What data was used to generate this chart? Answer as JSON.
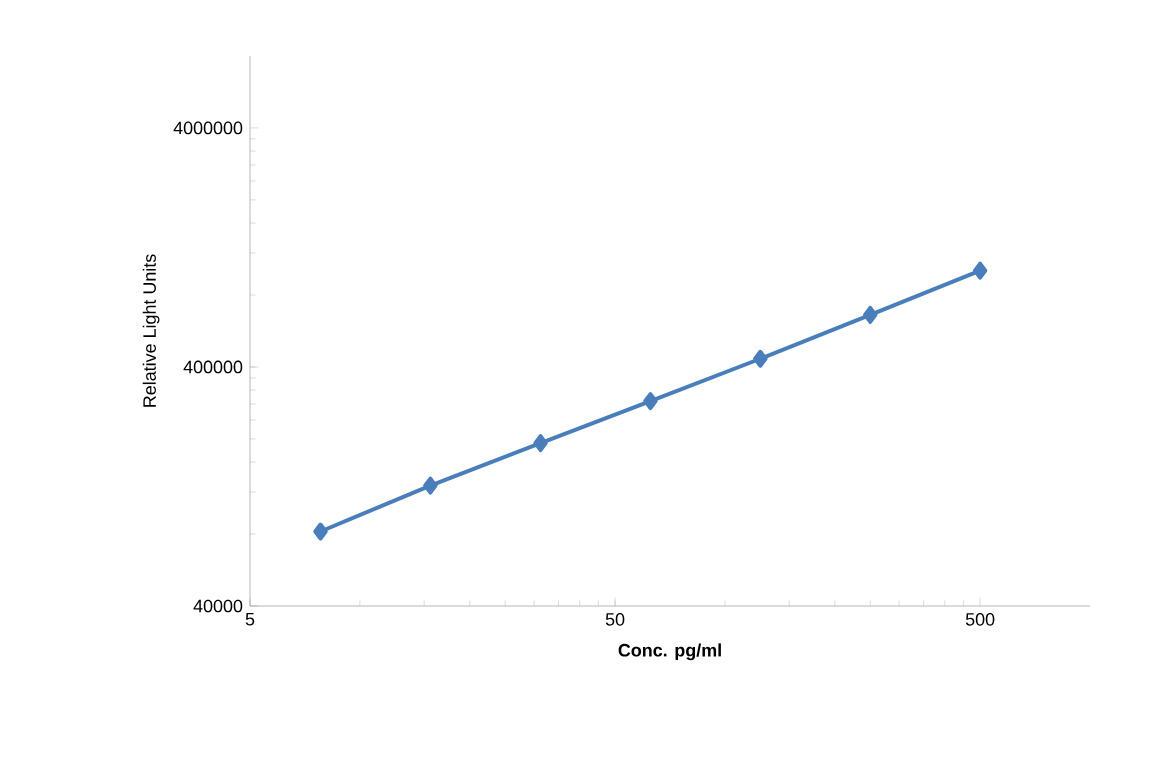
{
  "chart_data": {
    "type": "line",
    "xlabel": "Conc. pg/ml",
    "ylabel": "Relative Light Units",
    "x": [
      7.8,
      15.6,
      31.25,
      62.5,
      125,
      250,
      500
    ],
    "series": [
      {
        "color": "#4a7ebb",
        "values": [
          82000,
          127600,
          192000,
          288000,
          433000,
          661000,
          1012000
        ]
      }
    ],
    "log": "xy",
    "xlim": [
      5,
      1000
    ],
    "ylim": [
      40000,
      8000000
    ],
    "xticks": [
      5,
      50,
      500
    ],
    "yticks": [
      40000,
      400000,
      4000000
    ],
    "marker": "diamond",
    "line_style": "solid"
  }
}
